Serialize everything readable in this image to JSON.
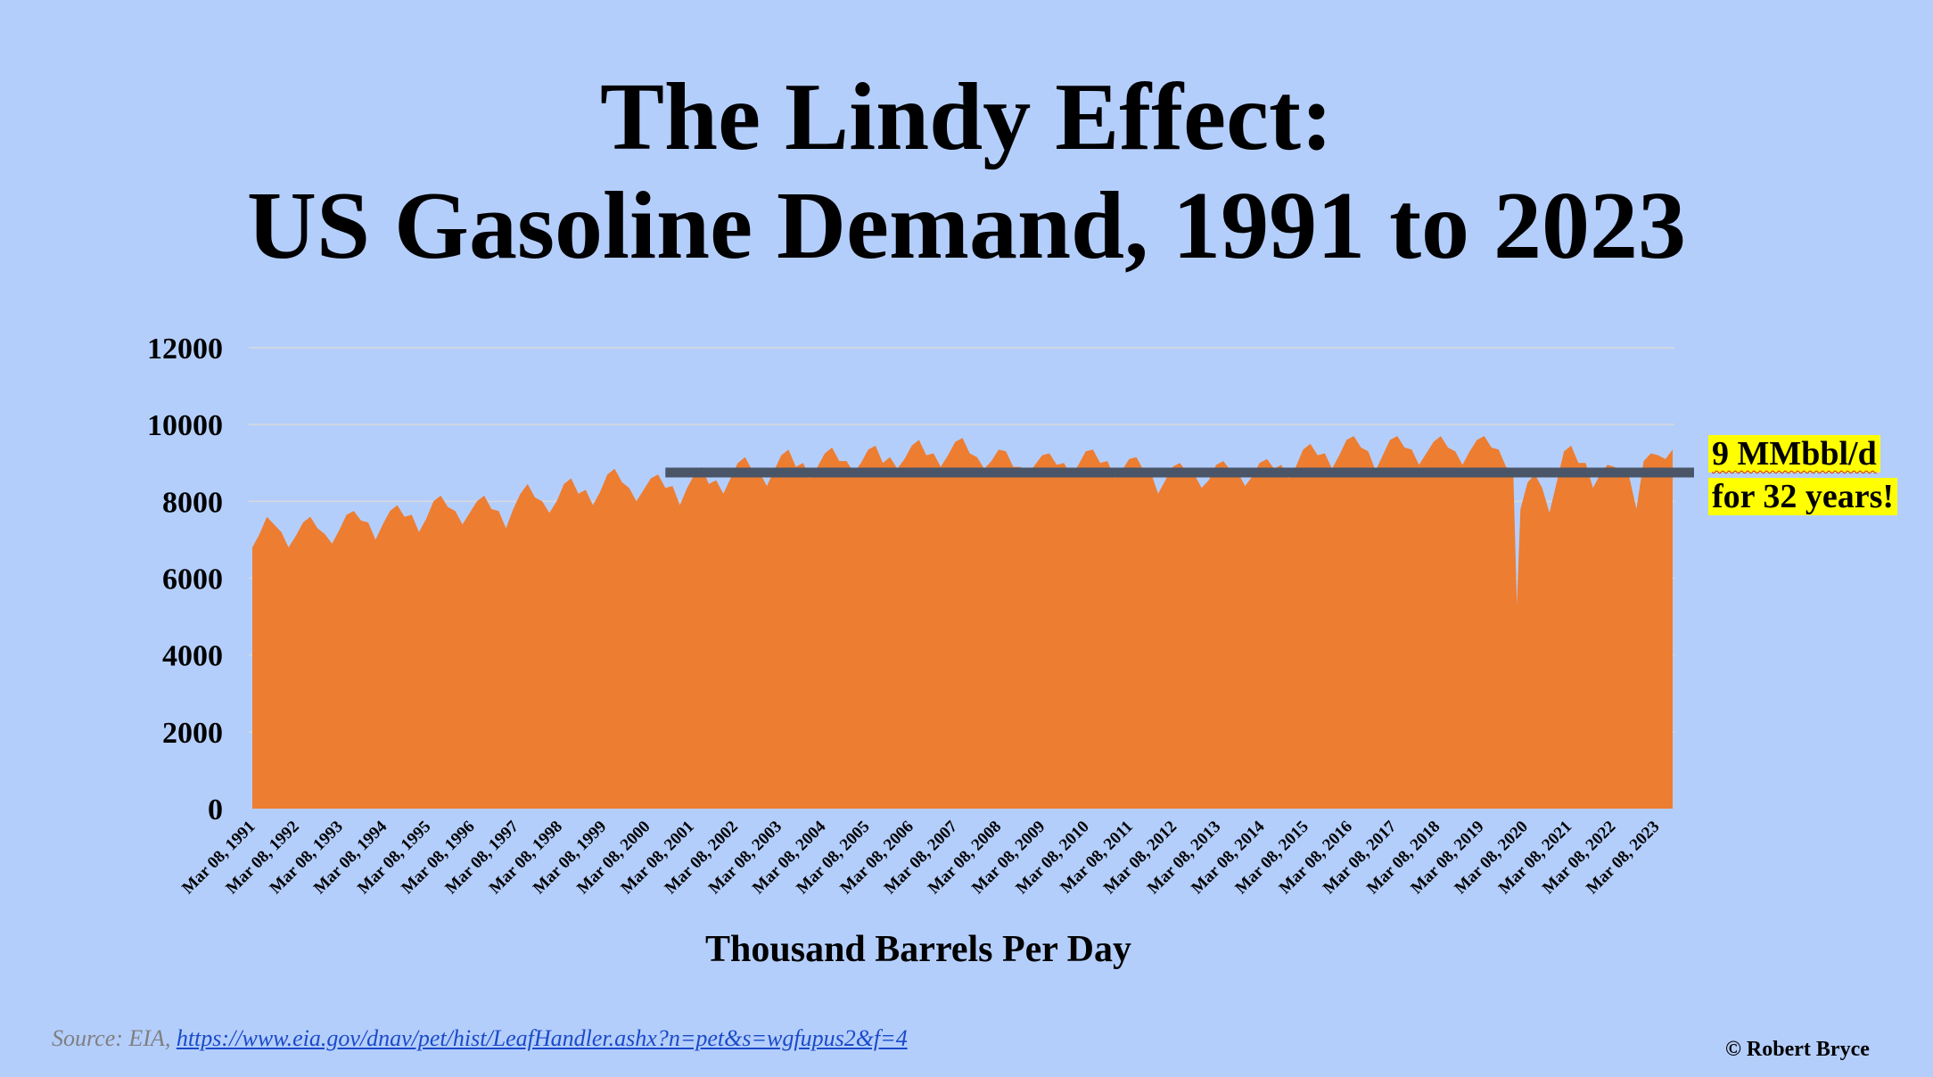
{
  "title_line1": "The Lindy Effect:",
  "title_line2": "US Gasoline Demand, 1991 to 2023",
  "callout": {
    "line1": "9 MMbbl/d",
    "line2": "for 32 years!",
    "highlight_color": "#ffff00"
  },
  "source": {
    "prefix": "Source: EIA, ",
    "link_text": "https://www.eia.gov/dnav/pet/hist/LeafHandler.ashx?n=pet&s=wgfupus2&f=4"
  },
  "copyright": "© Robert Bryce",
  "colors": {
    "background": "#b4cefc",
    "area": "#ed7d31",
    "reference_line": "#4a5568",
    "gridline": "#d9d9d9"
  },
  "chart_data": {
    "type": "area",
    "title": "The Lindy Effect: US Gasoline Demand, 1991 to 2023",
    "xlabel": "Thousand Barrels Per Day",
    "ylabel": "",
    "ylim": [
      0,
      12000
    ],
    "yticks": [
      0,
      2000,
      4000,
      6000,
      8000,
      10000,
      12000
    ],
    "grid": true,
    "legend": "none",
    "x_tick_labels": [
      "Mar 08, 1991",
      "Mar 08, 1992",
      "Mar 08, 1993",
      "Mar 08, 1994",
      "Mar 08, 1995",
      "Mar 08, 1996",
      "Mar 08, 1997",
      "Mar 08, 1998",
      "Mar 08, 1999",
      "Mar 08, 2000",
      "Mar 08, 2001",
      "Mar 08, 2002",
      "Mar 08, 2003",
      "Mar 08, 2004",
      "Mar 08, 2005",
      "Mar 08, 2006",
      "Mar 08, 2007",
      "Mar 08, 2008",
      "Mar 08, 2009",
      "Mar 08, 2010",
      "Mar 08, 2011",
      "Mar 08, 2012",
      "Mar 08, 2013",
      "Mar 08, 2014",
      "Mar 08, 2015",
      "Mar 08, 2016",
      "Mar 08, 2017",
      "Mar 08, 2018",
      "Mar 08, 2019",
      "Mar 08, 2020",
      "Mar 08, 2021",
      "Mar 08, 2022",
      "Mar 08, 2023"
    ],
    "series": [
      {
        "x": [
          "1991-03",
          "1991-05",
          "1991-07",
          "1991-09",
          "1991-11",
          "1992-01",
          "1992-03",
          "1992-05",
          "1992-07",
          "1992-09",
          "1992-11",
          "1993-01",
          "1993-03",
          "1993-05",
          "1993-07",
          "1993-09",
          "1993-11",
          "1994-01",
          "1994-03",
          "1994-05",
          "1994-07",
          "1994-09",
          "1994-11",
          "1995-01",
          "1995-03",
          "1995-05",
          "1995-07",
          "1995-09",
          "1995-11",
          "1996-01",
          "1996-03",
          "1996-05",
          "1996-07",
          "1996-09",
          "1996-11",
          "1997-01",
          "1997-03",
          "1997-05",
          "1997-07",
          "1997-09",
          "1997-11",
          "1998-01",
          "1998-03",
          "1998-05",
          "1998-07",
          "1998-09",
          "1998-11",
          "1999-01",
          "1999-03",
          "1999-05",
          "1999-07",
          "1999-09",
          "1999-11",
          "2000-01",
          "2000-03",
          "2000-05",
          "2000-07",
          "2000-09",
          "2000-11",
          "2001-01",
          "2001-03",
          "2001-05",
          "2001-07",
          "2001-09",
          "2001-11",
          "2002-01",
          "2002-03",
          "2002-05",
          "2002-07",
          "2002-09",
          "2002-11",
          "2003-01",
          "2003-03",
          "2003-05",
          "2003-07",
          "2003-09",
          "2003-11",
          "2004-01",
          "2004-03",
          "2004-05",
          "2004-07",
          "2004-09",
          "2004-11",
          "2005-01",
          "2005-03",
          "2005-05",
          "2005-07",
          "2005-09",
          "2005-11",
          "2006-01",
          "2006-03",
          "2006-05",
          "2006-07",
          "2006-09",
          "2006-11",
          "2007-01",
          "2007-03",
          "2007-05",
          "2007-07",
          "2007-09",
          "2007-11",
          "2008-01",
          "2008-03",
          "2008-05",
          "2008-07",
          "2008-09",
          "2008-11",
          "2009-01",
          "2009-03",
          "2009-05",
          "2009-07",
          "2009-09",
          "2009-11",
          "2010-01",
          "2010-03",
          "2010-05",
          "2010-07",
          "2010-09",
          "2010-11",
          "2011-01",
          "2011-03",
          "2011-05",
          "2011-07",
          "2011-09",
          "2011-11",
          "2012-01",
          "2012-03",
          "2012-05",
          "2012-07",
          "2012-09",
          "2012-11",
          "2013-01",
          "2013-03",
          "2013-05",
          "2013-07",
          "2013-09",
          "2013-11",
          "2014-01",
          "2014-03",
          "2014-05",
          "2014-07",
          "2014-09",
          "2014-11",
          "2015-01",
          "2015-03",
          "2015-05",
          "2015-07",
          "2015-09",
          "2015-11",
          "2016-01",
          "2016-03",
          "2016-05",
          "2016-07",
          "2016-09",
          "2016-11",
          "2017-01",
          "2017-03",
          "2017-05",
          "2017-07",
          "2017-09",
          "2017-11",
          "2018-01",
          "2018-03",
          "2018-05",
          "2018-07",
          "2018-09",
          "2018-11",
          "2019-01",
          "2019-03",
          "2019-05",
          "2019-07",
          "2019-09",
          "2019-11",
          "2020-01",
          "2020-03",
          "2020-04",
          "2020-05",
          "2020-07",
          "2020-09",
          "2020-11",
          "2021-01",
          "2021-03",
          "2021-05",
          "2021-07",
          "2021-09",
          "2021-11",
          "2022-01",
          "2022-03",
          "2022-05",
          "2022-07",
          "2022-09",
          "2022-11",
          "2023-01",
          "2023-03",
          "2023-05",
          "2023-07",
          "2023-09",
          "2023-11"
        ],
        "values": [
          6800,
          7150,
          7600,
          7400,
          7200,
          6800,
          7100,
          7450,
          7600,
          7300,
          7150,
          6900,
          7250,
          7650,
          7750,
          7500,
          7450,
          7000,
          7400,
          7750,
          7900,
          7600,
          7650,
          7200,
          7550,
          8000,
          8150,
          7850,
          7750,
          7400,
          7700,
          8000,
          8150,
          7800,
          7750,
          7300,
          7800,
          8200,
          8450,
          8100,
          8000,
          7700,
          8000,
          8450,
          8600,
          8200,
          8300,
          7900,
          8250,
          8700,
          8850,
          8500,
          8350,
          8000,
          8300,
          8600,
          8700,
          8350,
          8400,
          7900,
          8350,
          8700,
          8900,
          8450,
          8550,
          8200,
          8600,
          9000,
          9150,
          8800,
          8750,
          8400,
          8800,
          9200,
          9350,
          8900,
          9000,
          8600,
          8900,
          9250,
          9400,
          9050,
          9050,
          8750,
          9000,
          9350,
          9450,
          9000,
          9150,
          8850,
          9100,
          9450,
          9600,
          9200,
          9250,
          8900,
          9200,
          9550,
          9650,
          9250,
          9150,
          8850,
          9050,
          9350,
          9300,
          8900,
          8900,
          8700,
          8950,
          9200,
          9250,
          8950,
          9000,
          8650,
          8950,
          9300,
          9350,
          9000,
          9050,
          8600,
          8800,
          9100,
          9150,
          8800,
          8750,
          8200,
          8550,
          8900,
          9000,
          8750,
          8700,
          8350,
          8550,
          8950,
          9050,
          8800,
          8750,
          8400,
          8650,
          9000,
          9100,
          8850,
          8950,
          8600,
          8900,
          9350,
          9500,
          9200,
          9250,
          8850,
          9200,
          9600,
          9700,
          9400,
          9300,
          8800,
          9200,
          9600,
          9700,
          9400,
          9350,
          8950,
          9250,
          9550,
          9700,
          9400,
          9300,
          8950,
          9300,
          9600,
          9700,
          9400,
          9350,
          8900,
          8800,
          5300,
          7800,
          8500,
          8700,
          8350,
          7700,
          8500,
          9300,
          9450,
          9000,
          9000,
          8350,
          8700,
          8950,
          8900,
          8700,
          8650,
          7800,
          9050,
          9250,
          9200,
          9100,
          9350
        ]
      }
    ],
    "reference_line": {
      "value": 8750,
      "from": "2000-09",
      "to": "2024-02"
    },
    "annotation": "9 MMbbl/d for 32 years!"
  }
}
